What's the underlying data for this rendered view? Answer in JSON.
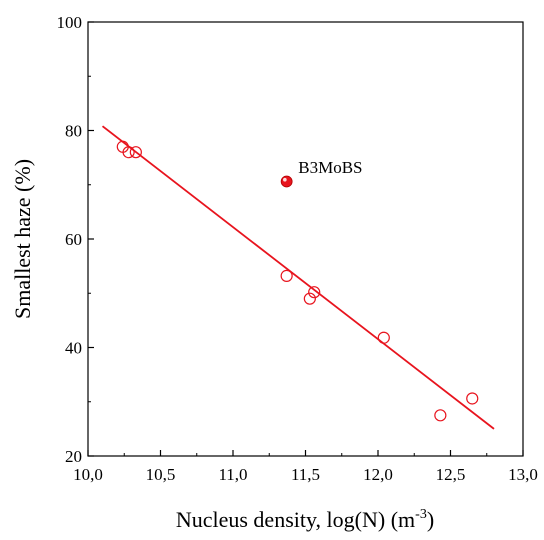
{
  "chart_data": {
    "type": "scatter",
    "xlabel": {
      "text": "Nucleus density, log(N) (m",
      "superscript": "-3",
      "suffix": ")"
    },
    "ylabel": "Smallest haze (%)",
    "xlim": [
      10.0,
      13.0
    ],
    "ylim": [
      20,
      100
    ],
    "x_ticks": [
      10.0,
      10.5,
      11.0,
      11.5,
      12.0,
      12.5,
      13.0
    ],
    "x_tick_labels": [
      "10,0",
      "10,5",
      "11,0",
      "11,5",
      "12,0",
      "12,5",
      "13,0"
    ],
    "y_ticks": [
      20,
      40,
      60,
      80,
      100
    ],
    "y_tick_labels": [
      "20",
      "40",
      "60",
      "80",
      "100"
    ],
    "grid": false,
    "accent_color": "#e8141e",
    "series": [
      {
        "marker": "open-circle",
        "x": [
          10.24,
          10.28,
          10.33,
          11.37,
          11.53,
          11.56,
          12.04,
          12.43,
          12.65
        ],
        "y": [
          77.0,
          76.0,
          76.0,
          53.2,
          49.0,
          50.2,
          41.8,
          27.5,
          30.6
        ]
      },
      {
        "marker": "filled-circle",
        "x": [
          11.37
        ],
        "y": [
          70.6
        ]
      }
    ],
    "fit_line": {
      "x": [
        10.1,
        12.8
      ],
      "y": [
        80.8,
        25.0
      ]
    },
    "annotations": [
      {
        "text": "B3MoBS",
        "x": 11.45,
        "y": 72.2
      }
    ]
  }
}
